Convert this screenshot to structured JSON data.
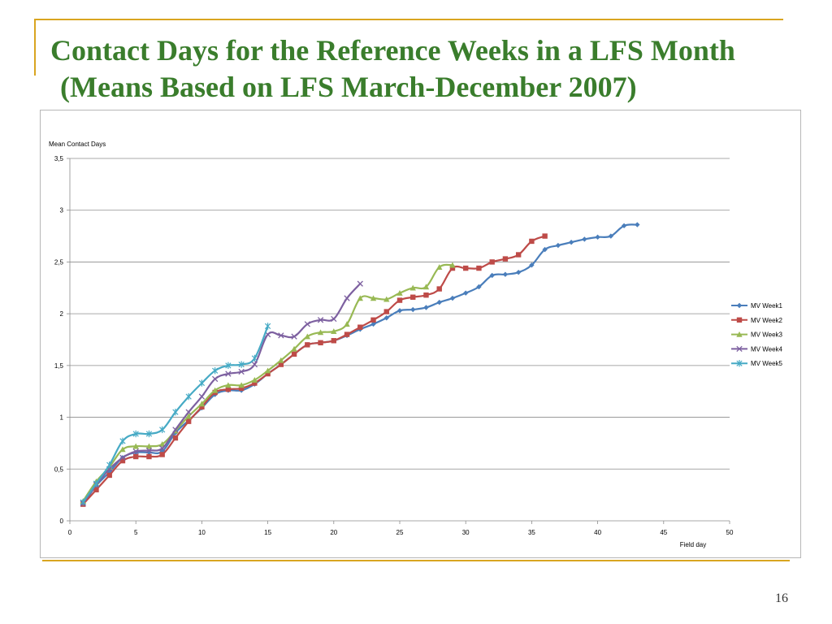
{
  "slide": {
    "title_line1": "Contact Days for the Reference Weeks in a LFS Month",
    "title_line2": "(Means Based on LFS March-December 2007)",
    "page_number": "16",
    "accent_color": "#d9a520",
    "title_color": "#3a7d2c"
  },
  "chart_data": {
    "type": "line",
    "ylabel": "Mean Contact Days",
    "xlabel": "Field day",
    "xlim": [
      0,
      50
    ],
    "ylim": [
      0,
      3.5
    ],
    "x_ticks": [
      "0",
      "5",
      "10",
      "15",
      "20",
      "25",
      "30",
      "35",
      "40",
      "45",
      "50"
    ],
    "y_ticks": [
      "0",
      "0,5",
      "1",
      "1,5",
      "2",
      "2,5",
      "3",
      "3,5"
    ],
    "grid": "horizontal",
    "legend_position": "right",
    "series": [
      {
        "name": "MV Week1",
        "color": "#4a7ebb",
        "marker": "diamond",
        "x": [
          1,
          2,
          3,
          4,
          5,
          6,
          7,
          8,
          9,
          10,
          11,
          12,
          13,
          14,
          15,
          16,
          17,
          18,
          19,
          20,
          21,
          22,
          23,
          24,
          25,
          26,
          27,
          28,
          29,
          30,
          31,
          32,
          33,
          34,
          35,
          36,
          37,
          38,
          39,
          40,
          41,
          42,
          43
        ],
        "y": [
          0.16,
          0.34,
          0.47,
          0.61,
          0.66,
          0.66,
          0.67,
          0.85,
          0.97,
          1.09,
          1.22,
          1.26,
          1.26,
          1.32,
          1.42,
          1.51,
          1.61,
          1.7,
          1.72,
          1.74,
          1.79,
          1.85,
          1.9,
          1.96,
          2.03,
          2.04,
          2.06,
          2.11,
          2.15,
          2.2,
          2.26,
          2.37,
          2.38,
          2.4,
          2.47,
          2.62,
          2.66,
          2.69,
          2.72,
          2.74,
          2.75,
          2.85,
          2.86
        ]
      },
      {
        "name": "MV Week2",
        "color": "#be4b48",
        "marker": "square",
        "x": [
          1,
          2,
          3,
          4,
          5,
          6,
          7,
          8,
          9,
          10,
          11,
          12,
          13,
          14,
          15,
          16,
          17,
          18,
          19,
          20,
          21,
          22,
          23,
          24,
          25,
          26,
          27,
          28,
          29,
          30,
          31,
          32,
          33,
          34,
          35,
          36
        ],
        "y": [
          0.16,
          0.3,
          0.44,
          0.58,
          0.62,
          0.62,
          0.64,
          0.8,
          0.96,
          1.1,
          1.24,
          1.27,
          1.28,
          1.33,
          1.42,
          1.51,
          1.61,
          1.7,
          1.72,
          1.74,
          1.8,
          1.87,
          1.94,
          2.02,
          2.13,
          2.16,
          2.18,
          2.24,
          2.44,
          2.44,
          2.44,
          2.5,
          2.53,
          2.57,
          2.7,
          2.75
        ]
      },
      {
        "name": "MV Week3",
        "color": "#98b954",
        "marker": "triangle",
        "x": [
          1,
          2,
          3,
          4,
          5,
          6,
          7,
          8,
          9,
          10,
          11,
          12,
          13,
          14,
          15,
          16,
          17,
          18,
          19,
          20,
          21,
          22,
          23,
          24,
          25,
          26,
          27,
          28,
          29
        ],
        "y": [
          0.19,
          0.38,
          0.52,
          0.69,
          0.72,
          0.72,
          0.74,
          0.87,
          1.01,
          1.13,
          1.26,
          1.31,
          1.31,
          1.36,
          1.45,
          1.55,
          1.66,
          1.78,
          1.82,
          1.83,
          1.9,
          2.15,
          2.15,
          2.14,
          2.2,
          2.25,
          2.26,
          2.45,
          2.47
        ]
      },
      {
        "name": "MV Week4",
        "color": "#7d60a0",
        "marker": "x",
        "x": [
          1,
          2,
          3,
          4,
          5,
          6,
          7,
          8,
          9,
          10,
          11,
          12,
          13,
          14,
          15,
          16,
          17,
          18,
          19,
          20,
          21,
          22
        ],
        "y": [
          0.17,
          0.35,
          0.5,
          0.61,
          0.67,
          0.68,
          0.7,
          0.88,
          1.05,
          1.2,
          1.37,
          1.42,
          1.44,
          1.51,
          1.8,
          1.79,
          1.78,
          1.9,
          1.94,
          1.95,
          2.15,
          2.29
        ]
      },
      {
        "name": "MV Week5",
        "color": "#46aac5",
        "marker": "asterisk",
        "x": [
          1,
          2,
          3,
          4,
          5,
          6,
          7,
          8,
          9,
          10,
          11,
          12,
          13,
          14,
          15
        ],
        "y": [
          0.18,
          0.36,
          0.54,
          0.77,
          0.84,
          0.84,
          0.88,
          1.05,
          1.2,
          1.33,
          1.45,
          1.5,
          1.51,
          1.57,
          1.88
        ]
      }
    ]
  }
}
